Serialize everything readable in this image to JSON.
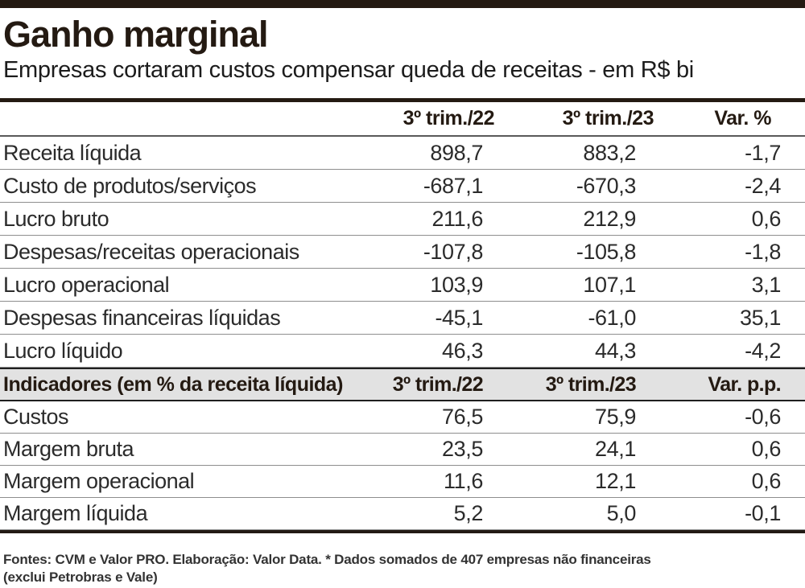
{
  "page": {
    "title": "Ganho marginal",
    "subtitle": "Empresas cortaram custos compensar queda de receitas - em R$ bi",
    "footer": {
      "line1": "Fontes: CVM e Valor PRO. Elaboração: Valor Data. * Dados somados de 407 empresas não financeiras",
      "line2": "(exclui Petrobras e Vale)"
    }
  },
  "colors": {
    "accent_dark": "#241a12",
    "band_bg": "#e2e2e2",
    "text": "#2b2b2b",
    "separator": "#8e8e8e"
  },
  "chart_data": {
    "type": "table",
    "title": "Ganho marginal",
    "subtitle": "Empresas cortaram custos compensar queda de receitas - em R$ bi",
    "unit": "R$ bi",
    "sections": [
      {
        "name": "valores-absolutos",
        "header": {
          "label": "",
          "c1": "3º trim./22",
          "c2": "3º trim./23",
          "c3": "Var. %"
        },
        "rows": [
          {
            "label": "Receita líquida",
            "c1": "898,7",
            "c2": "883,2",
            "c3": "-1,7"
          },
          {
            "label": "Custo de produtos/serviços",
            "c1": "-687,1",
            "c2": "-670,3",
            "c3": "-2,4"
          },
          {
            "label": "Lucro bruto",
            "c1": "211,6",
            "c2": "212,9",
            "c3": "0,6"
          },
          {
            "label": "Despesas/receitas operacionais",
            "c1": "-107,8",
            "c2": "-105,8",
            "c3": "-1,8"
          },
          {
            "label": "Lucro operacional",
            "c1": "103,9",
            "c2": "107,1",
            "c3": "3,1"
          },
          {
            "label": "Despesas financeiras líquidas",
            "c1": "-45,1",
            "c2": "-61,0",
            "c3": "35,1"
          },
          {
            "label": "Lucro líquido",
            "c1": "46,3",
            "c2": "44,3",
            "c3": "-4,2"
          }
        ]
      },
      {
        "name": "indicadores",
        "header": {
          "label": "Indicadores (em % da receita líquida)",
          "c1": "3º trim./22",
          "c2": "3º trim./23",
          "c3": "Var. p.p."
        },
        "rows": [
          {
            "label": "Custos",
            "c1": "76,5",
            "c2": "75,9",
            "c3": "-0,6"
          },
          {
            "label": "Margem bruta",
            "c1": "23,5",
            "c2": "24,1",
            "c3": "0,6"
          },
          {
            "label": "Margem operacional",
            "c1": "11,6",
            "c2": "12,1",
            "c3": "0,6"
          },
          {
            "label": "Margem líquida",
            "c1": "5,2",
            "c2": "5,0",
            "c3": "-0,1"
          }
        ]
      }
    ]
  }
}
